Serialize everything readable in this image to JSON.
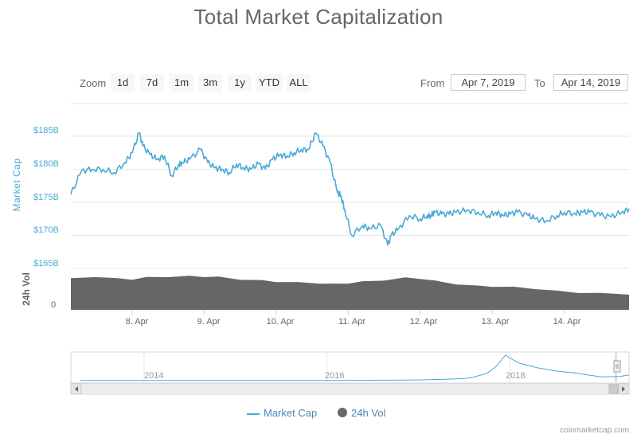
{
  "chart_data": {
    "type": "line",
    "title": "Total Market Capitalization",
    "ylabel": "Market Cap",
    "ylim": [
      165,
      190
    ],
    "y_ticks": [
      "$165B",
      "$170B",
      "$175B",
      "$180B",
      "$185B"
    ],
    "y_tick_values": [
      165,
      170,
      175,
      180,
      185
    ],
    "x_ticks": [
      "8. Apr",
      "9. Apr",
      "10. Apr",
      "11. Apr",
      "12. Apr",
      "13. Apr",
      "14. Apr"
    ],
    "x_tick_values": [
      8,
      9,
      10,
      11,
      12,
      13,
      14
    ],
    "xlim": [
      7.15,
      14.9
    ],
    "grid": true,
    "legend_placement": "bottom",
    "series": [
      {
        "name": "Market Cap",
        "color": "#4aa9d6",
        "x": [
          7.15,
          7.3,
          7.45,
          7.6,
          7.75,
          7.9,
          8.0,
          8.1,
          8.15,
          8.25,
          8.35,
          8.45,
          8.55,
          8.65,
          8.7,
          8.8,
          8.95,
          9.05,
          9.15,
          9.25,
          9.35,
          9.45,
          9.55,
          9.65,
          9.75,
          9.85,
          9.95,
          10.05,
          10.15,
          10.25,
          10.35,
          10.45,
          10.55,
          10.65,
          10.75,
          10.85,
          10.9,
          10.95,
          11.05,
          11.2,
          11.3,
          11.45,
          11.55,
          11.6,
          11.7,
          11.85,
          12.0,
          12.1,
          12.15,
          12.2,
          12.3,
          12.4,
          12.5,
          12.65,
          12.8,
          12.95,
          13.05,
          13.15,
          13.25,
          13.35,
          13.5,
          13.6,
          13.75,
          13.9,
          14.0,
          14.15,
          14.25,
          14.35,
          14.5,
          14.65,
          14.8,
          14.9
        ],
        "values": [
          176.2,
          179.8,
          180.0,
          180.0,
          179.5,
          181.0,
          182.5,
          185.5,
          183.5,
          182.2,
          181.5,
          182.0,
          179.0,
          180.8,
          181.0,
          181.5,
          183.0,
          181.0,
          180.2,
          180.0,
          179.5,
          180.8,
          180.2,
          180.0,
          180.8,
          180.0,
          181.5,
          182.2,
          182.0,
          182.5,
          183.0,
          183.0,
          185.5,
          183.5,
          181.0,
          176.5,
          176.0,
          174.0,
          170.0,
          171.5,
          171.0,
          171.5,
          168.5,
          170.0,
          171.0,
          173.0,
          172.5,
          173.0,
          173.0,
          173.5,
          173.2,
          173.2,
          173.5,
          173.8,
          173.5,
          173.0,
          173.5,
          173.0,
          173.2,
          173.5,
          173.0,
          172.5,
          172.2,
          173.0,
          173.5,
          173.3,
          173.5,
          173.5,
          173.0,
          172.8,
          173.5,
          174.0
        ]
      },
      {
        "name": "24h Vol",
        "color": "#666666",
        "x": [
          7.15,
          7.5,
          7.8,
          8.0,
          8.2,
          8.5,
          8.8,
          9.0,
          9.2,
          9.5,
          9.8,
          10.0,
          10.3,
          10.6,
          10.8,
          11.0,
          11.2,
          11.5,
          11.8,
          12.0,
          12.2,
          12.5,
          12.8,
          13.0,
          13.3,
          13.6,
          13.9,
          14.2,
          14.5,
          14.9
        ],
        "values": [
          0.8,
          0.85,
          0.8,
          0.78,
          0.83,
          0.85,
          0.86,
          0.85,
          0.84,
          0.78,
          0.75,
          0.72,
          0.7,
          0.68,
          0.66,
          0.68,
          0.72,
          0.76,
          0.82,
          0.8,
          0.74,
          0.66,
          0.61,
          0.6,
          0.58,
          0.54,
          0.48,
          0.44,
          0.42,
          0.4
        ]
      }
    ],
    "navigator": {
      "x_labels": [
        "2014",
        "2016",
        "2018"
      ],
      "x_label_values": [
        2014,
        2016,
        2018
      ],
      "xlim": [
        2013.2,
        2019.3
      ],
      "x": [
        2013.3,
        2014.0,
        2014.5,
        2015.0,
        2015.5,
        2016.0,
        2016.5,
        2017.0,
        2017.3,
        2017.5,
        2017.6,
        2017.75,
        2017.85,
        2017.95,
        2018.0,
        2018.1,
        2018.3,
        2018.5,
        2018.7,
        2018.9,
        2019.0,
        2019.2,
        2019.3
      ],
      "values": [
        0.05,
        0.08,
        0.06,
        0.05,
        0.05,
        0.07,
        0.12,
        0.22,
        0.45,
        0.7,
        1.1,
        2.3,
        4.5,
        8.0,
        7.0,
        5.5,
        4.0,
        3.0,
        2.4,
        1.6,
        1.2,
        1.3,
        1.8
      ],
      "vmax": 8.2
    }
  },
  "toolbar": {
    "zoom_label": "Zoom",
    "buttons": [
      "1d",
      "7d",
      "1m",
      "3m",
      "1y",
      "YTD",
      "ALL"
    ],
    "from_label": "From",
    "from_value": "Apr 7, 2019",
    "to_label": "To",
    "to_value": "Apr 14, 2019"
  },
  "volume_axis": {
    "title": "24h Vol",
    "zero_label": "0"
  },
  "legend": {
    "market_cap": "Market Cap",
    "volume": "24h Vol"
  },
  "credit": "coinmarketcap.com"
}
